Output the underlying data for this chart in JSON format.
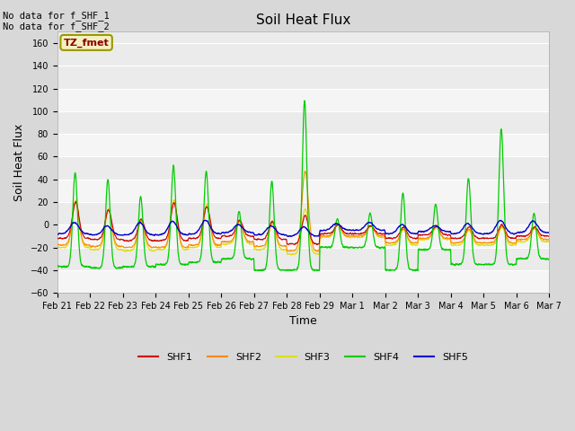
{
  "title": "Soil Heat Flux",
  "ylabel": "Soil Heat Flux",
  "xlabel": "Time",
  "annotation_text": "No data for f_SHF_1\nNo data for f_SHF_2",
  "tz_label": "TZ_fmet",
  "ylim": [
    -60,
    170
  ],
  "yticks": [
    -60,
    -40,
    -20,
    0,
    20,
    40,
    60,
    80,
    100,
    120,
    140,
    160
  ],
  "xtick_labels": [
    "Feb 21",
    "Feb 22",
    "Feb 23",
    "Feb 24",
    "Feb 25",
    "Feb 26",
    "Feb 27",
    "Feb 28",
    "Feb 29",
    "Mar 1",
    "Mar 2",
    "Mar 3",
    "Mar 4",
    "Mar 5",
    "Mar 6",
    "Mar 7"
  ],
  "colors": {
    "SHF1": "#cc0000",
    "SHF2": "#ff8800",
    "SHF3": "#dddd00",
    "SHF4": "#00cc00",
    "SHF5": "#0000cc"
  },
  "bg_color": "#d8d8d8",
  "plot_bg_color": "#ebebeb",
  "grid_color": "#ffffff",
  "legend_entries": [
    "SHF1",
    "SHF2",
    "SHF3",
    "SHF4",
    "SHF5"
  ],
  "n_days": 15,
  "pts_per_day": 144
}
